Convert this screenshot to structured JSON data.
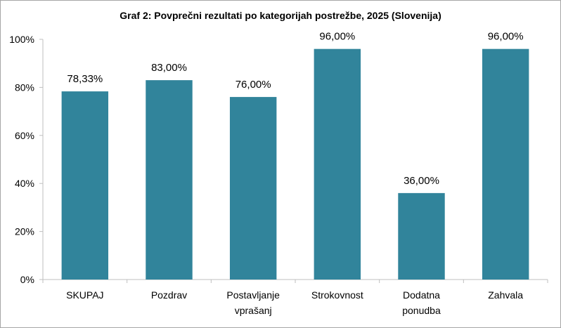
{
  "chart_data": {
    "type": "bar",
    "title": "Graf 2: Povprečni rezultati po kategorijah postrežbe, 2025 (Slovenija)",
    "categories": [
      [
        "SKUPAJ"
      ],
      [
        "Pozdrav"
      ],
      [
        "Postavljanje",
        "vprašanj"
      ],
      [
        "Strokovnost"
      ],
      [
        "Dodatna",
        "ponudba"
      ],
      [
        "Zahvala"
      ]
    ],
    "values": [
      78.33,
      83.0,
      76.0,
      96.0,
      36.0,
      96.0
    ],
    "data_labels": [
      "78,33%",
      "83,00%",
      "76,00%",
      "96,00%",
      "36,00%",
      "96,00%"
    ],
    "ylim": [
      0,
      100
    ],
    "yticks": [
      0,
      20,
      40,
      60,
      80,
      100
    ],
    "ytick_labels": [
      "0%",
      "20%",
      "40%",
      "60%",
      "80%",
      "100%"
    ],
    "xlabel": "",
    "ylabel": "",
    "grid": false,
    "legend": "none",
    "bar_color": "#31849b",
    "axis_color": "#bfbfbf"
  }
}
